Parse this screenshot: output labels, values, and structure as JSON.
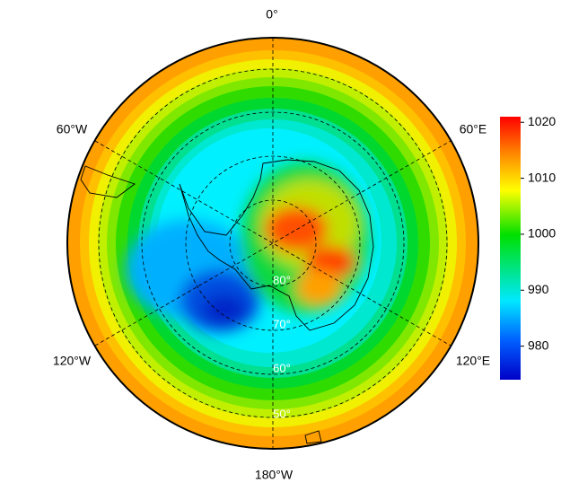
{
  "map": {
    "longitude_labels": [
      "0°",
      "60°E",
      "120°E",
      "180°W",
      "120°W",
      "60°W"
    ],
    "latitude_labels": [
      "80°",
      "70°",
      "60°",
      "50°"
    ]
  },
  "colorbar": {
    "lim": [
      974,
      1021
    ],
    "ticks": [
      980,
      990,
      1000,
      1010,
      1020
    ]
  }
}
